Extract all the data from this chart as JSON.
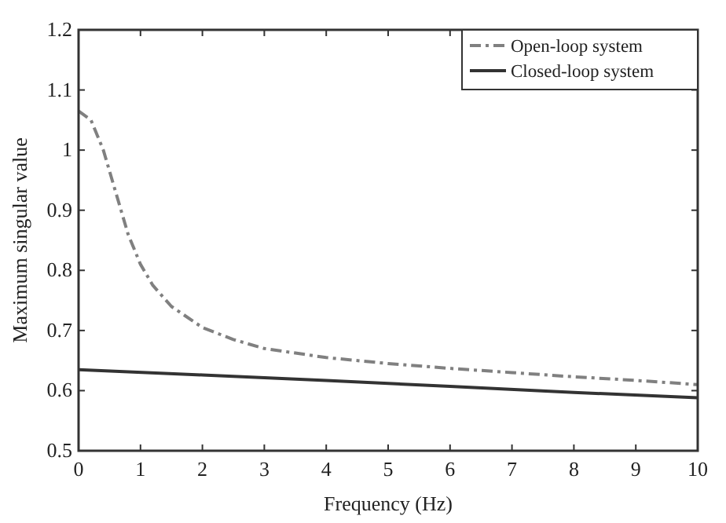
{
  "chart_data": {
    "type": "line",
    "xlabel": "Frequency (Hz)",
    "ylabel": "Maximum singular value",
    "xlim": [
      0,
      10
    ],
    "ylim": [
      0.5,
      1.2
    ],
    "xticks": [
      0,
      1,
      2,
      3,
      4,
      5,
      6,
      7,
      8,
      9,
      10
    ],
    "yticks": [
      0.5,
      0.6,
      0.7,
      0.8,
      0.9,
      1,
      1.1,
      1.2
    ],
    "legend": "top right",
    "grid": false,
    "series": [
      {
        "name": "Open-loop system",
        "color": "#808080",
        "line_style": "dashed",
        "x": [
          0,
          0.2,
          0.4,
          0.6,
          0.8,
          1,
          1.2,
          1.5,
          2,
          2.5,
          3,
          4,
          5,
          6,
          7,
          8,
          9,
          10
        ],
        "values": [
          1.065,
          1.05,
          1.0,
          0.93,
          0.86,
          0.81,
          0.775,
          0.74,
          0.705,
          0.685,
          0.67,
          0.655,
          0.645,
          0.637,
          0.63,
          0.623,
          0.617,
          0.61
        ]
      },
      {
        "name": "Closed-loop system",
        "color": "#333333",
        "line_style": "solid",
        "x": [
          0,
          2,
          4,
          6,
          8,
          10
        ],
        "values": [
          0.635,
          0.626,
          0.617,
          0.607,
          0.597,
          0.588
        ]
      }
    ]
  }
}
